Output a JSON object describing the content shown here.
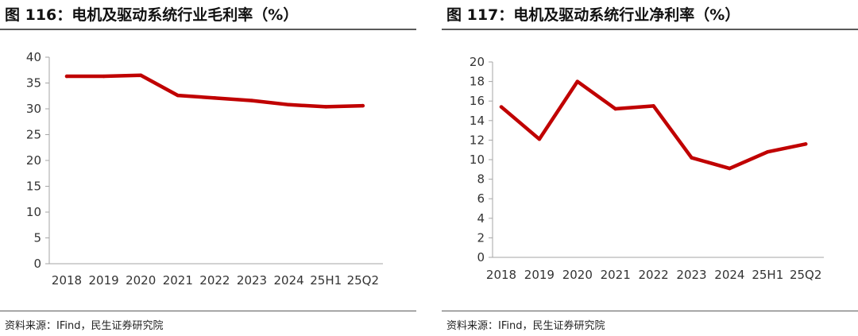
{
  "charts": [
    {
      "title": "图 116：电机及驱动系统行业毛利率（%）",
      "source": "资料来源：IFind，民生证券研究院",
      "chart_data": {
        "type": "line",
        "title": "图 116：电机及驱动系统行业毛利率（%）",
        "xlabel": "",
        "ylabel": "",
        "categories": [
          "2018",
          "2019",
          "2020",
          "2021",
          "2022",
          "2023",
          "2024",
          "25H1",
          "25Q2"
        ],
        "series": [
          {
            "values": [
              36.3,
              36.3,
              36.5,
              32.6,
              32.1,
              31.6,
              30.8,
              30.4,
              30.6
            ]
          }
        ],
        "ylim": [
          0,
          40
        ],
        "yticks": [
          "0",
          "5",
          "10",
          "15",
          "20",
          "25",
          "30",
          "35",
          "40"
        ],
        "grid": false,
        "legend": "none",
        "line_color": "#c00000"
      }
    },
    {
      "title": "图 117：电机及驱动系统行业净利率（%）",
      "source": "资料来源：IFind，民生证券研究院",
      "chart_data": {
        "type": "line",
        "title": "图 117：电机及驱动系统行业净利率（%）",
        "xlabel": "",
        "ylabel": "",
        "categories": [
          "2018",
          "2019",
          "2020",
          "2021",
          "2022",
          "2023",
          "2024",
          "25H1",
          "25Q2"
        ],
        "series": [
          {
            "values": [
              15.4,
              12.1,
              18.0,
              15.2,
              15.5,
              10.2,
              9.1,
              10.8,
              11.6
            ]
          }
        ],
        "ylim": [
          0,
          20
        ],
        "yticks": [
          "0",
          "2",
          "4",
          "6",
          "8",
          "10",
          "12",
          "14",
          "16",
          "18",
          "20"
        ],
        "grid": false,
        "legend": "none",
        "line_color": "#c00000"
      }
    }
  ]
}
